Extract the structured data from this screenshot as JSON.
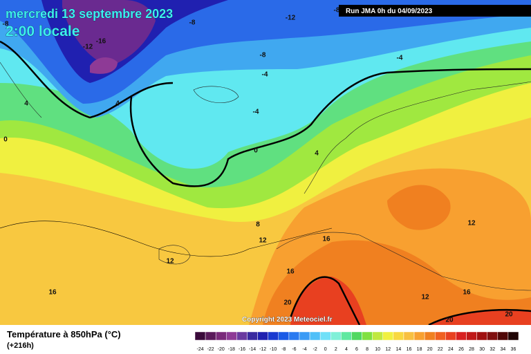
{
  "header": {
    "date": "mercredi 13 septembre 2023",
    "time": "2:00 locale",
    "run": "Run JMA 0h du 04/09/2023"
  },
  "map": {
    "copyright": "Copyright 2023 Meteociel.fr",
    "contour_labels": [
      -8,
      -8,
      -12,
      -16,
      -8,
      -12,
      -8,
      -4,
      -4,
      4,
      4,
      -4,
      0,
      0,
      4,
      8,
      12,
      16,
      12,
      12,
      16,
      16,
      20,
      12,
      16,
      20,
      20
    ]
  },
  "legend": {
    "title": "Température à 850hPa (°C)",
    "lead": "(+216h)",
    "labels": [
      -24,
      -22,
      -20,
      -18,
      -16,
      -14,
      -12,
      -10,
      -8,
      -6,
      -4,
      -2,
      0,
      2,
      4,
      6,
      8,
      10,
      12,
      14,
      16,
      18,
      20,
      22,
      24,
      26,
      28,
      30,
      32,
      34,
      36
    ],
    "colors": [
      "#3a0a3a",
      "#5a1a5a",
      "#7a2a7a",
      "#8e3a96",
      "#6a3aa0",
      "#3a2aa0",
      "#2020b0",
      "#1a3ad0",
      "#1a5ae6",
      "#2a7af0",
      "#3a9af5",
      "#50c0f8",
      "#70e0f8",
      "#80f0d8",
      "#60e8a0",
      "#50d860",
      "#80e040",
      "#c0e840",
      "#f0f040",
      "#f8d840",
      "#f8c040",
      "#f8a030",
      "#f08020",
      "#f06020",
      "#e84020",
      "#d82020",
      "#c01818",
      "#a01010",
      "#801010",
      "#500808",
      "#200404"
    ]
  }
}
